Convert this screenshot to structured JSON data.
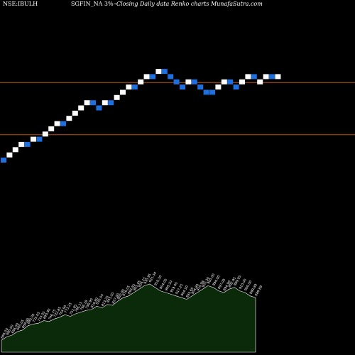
{
  "header": {
    "symbol_text": "NSE:IBULH",
    "series_text": "SGFIN_NA 3%~",
    "subtitle_text": "Closing Daily data Renko charts MunafaSutra.com"
  },
  "colors": {
    "background": "#000000",
    "up_brick": "#ffffff",
    "down_brick": "#1e6fe0",
    "resistance_line": "#c05010",
    "volume_fill": "#0a2a0a",
    "volume_stroke": "#ffffff"
  },
  "chart_data": {
    "type": "renko",
    "bricks": [
      {
        "level": 1,
        "dir": "down"
      },
      {
        "level": 2,
        "dir": "up"
      },
      {
        "level": 3,
        "dir": "up"
      },
      {
        "level": 4,
        "dir": "up"
      },
      {
        "level": 4,
        "dir": "down"
      },
      {
        "level": 5,
        "dir": "up"
      },
      {
        "level": 5,
        "dir": "down"
      },
      {
        "level": 6,
        "dir": "up"
      },
      {
        "level": 7,
        "dir": "up"
      },
      {
        "level": 8,
        "dir": "up"
      },
      {
        "level": 8,
        "dir": "down"
      },
      {
        "level": 9,
        "dir": "up"
      },
      {
        "level": 10,
        "dir": "up"
      },
      {
        "level": 11,
        "dir": "up"
      },
      {
        "level": 12,
        "dir": "up"
      },
      {
        "level": 12,
        "dir": "down"
      },
      {
        "level": 11,
        "dir": "down"
      },
      {
        "level": 12,
        "dir": "up"
      },
      {
        "level": 12,
        "dir": "down"
      },
      {
        "level": 13,
        "dir": "up"
      },
      {
        "level": 14,
        "dir": "up"
      },
      {
        "level": 15,
        "dir": "up"
      },
      {
        "level": 15,
        "dir": "down"
      },
      {
        "level": 16,
        "dir": "up"
      },
      {
        "level": 17,
        "dir": "up"
      },
      {
        "level": 17,
        "dir": "down"
      },
      {
        "level": 18,
        "dir": "up"
      },
      {
        "level": 18,
        "dir": "down"
      },
      {
        "level": 17,
        "dir": "down"
      },
      {
        "level": 16,
        "dir": "down"
      },
      {
        "level": 15,
        "dir": "down"
      },
      {
        "level": 16,
        "dir": "up"
      },
      {
        "level": 16,
        "dir": "down"
      },
      {
        "level": 15,
        "dir": "down"
      },
      {
        "level": 14,
        "dir": "down"
      },
      {
        "level": 14,
        "dir": "down"
      },
      {
        "level": 15,
        "dir": "up"
      },
      {
        "level": 16,
        "dir": "up"
      },
      {
        "level": 16,
        "dir": "down"
      },
      {
        "level": 15,
        "dir": "down"
      },
      {
        "level": 16,
        "dir": "up"
      },
      {
        "level": 17,
        "dir": "up"
      },
      {
        "level": 17,
        "dir": "down"
      },
      {
        "level": 16,
        "dir": "up"
      },
      {
        "level": 17,
        "dir": "up"
      },
      {
        "level": 17,
        "dir": "down"
      },
      {
        "level": 17,
        "dir": "up"
      }
    ],
    "horizontal_lines": [
      17,
      7
    ],
    "volume": {
      "labels": [
        "666.00",
        "686.00",
        "686.00",
        "665.05",
        "669.90",
        "690.00",
        "725.05",
        "714.05",
        "690.90",
        "746.75",
        "732.85",
        "764.90",
        "773.25",
        "751.85",
        "786.15",
        "796.18",
        "799.90",
        "816.80",
        "830.04",
        "813.20",
        "843.20",
        "837.50",
        "862.85",
        "876.05",
        "893.85",
        "905.45",
        "924.15",
        "930.95",
        "921.34",
        "919.30",
        "904.00",
        "908.20",
        "919.00",
        "917.25",
        "904.50",
        "893.65",
        "904.80",
        "910.96",
        "920.30",
        "900.00",
        "894.00",
        "897.09",
        "894.90",
        "892.95",
        "889.95",
        "910.00",
        "909.00",
        "899.99",
        "889.89"
      ],
      "heights": [
        0.14,
        0.18,
        0.2,
        0.24,
        0.26,
        0.31,
        0.33,
        0.34,
        0.37,
        0.36,
        0.39,
        0.41,
        0.44,
        0.42,
        0.45,
        0.47,
        0.49,
        0.5,
        0.54,
        0.52,
        0.56,
        0.55,
        0.6,
        0.64,
        0.66,
        0.7,
        0.74,
        0.78,
        0.8,
        0.76,
        0.72,
        0.7,
        0.68,
        0.66,
        0.64,
        0.62,
        0.66,
        0.7,
        0.74,
        0.78,
        0.76,
        0.72,
        0.7,
        0.74,
        0.76,
        0.72,
        0.7,
        0.66,
        0.64
      ]
    }
  }
}
